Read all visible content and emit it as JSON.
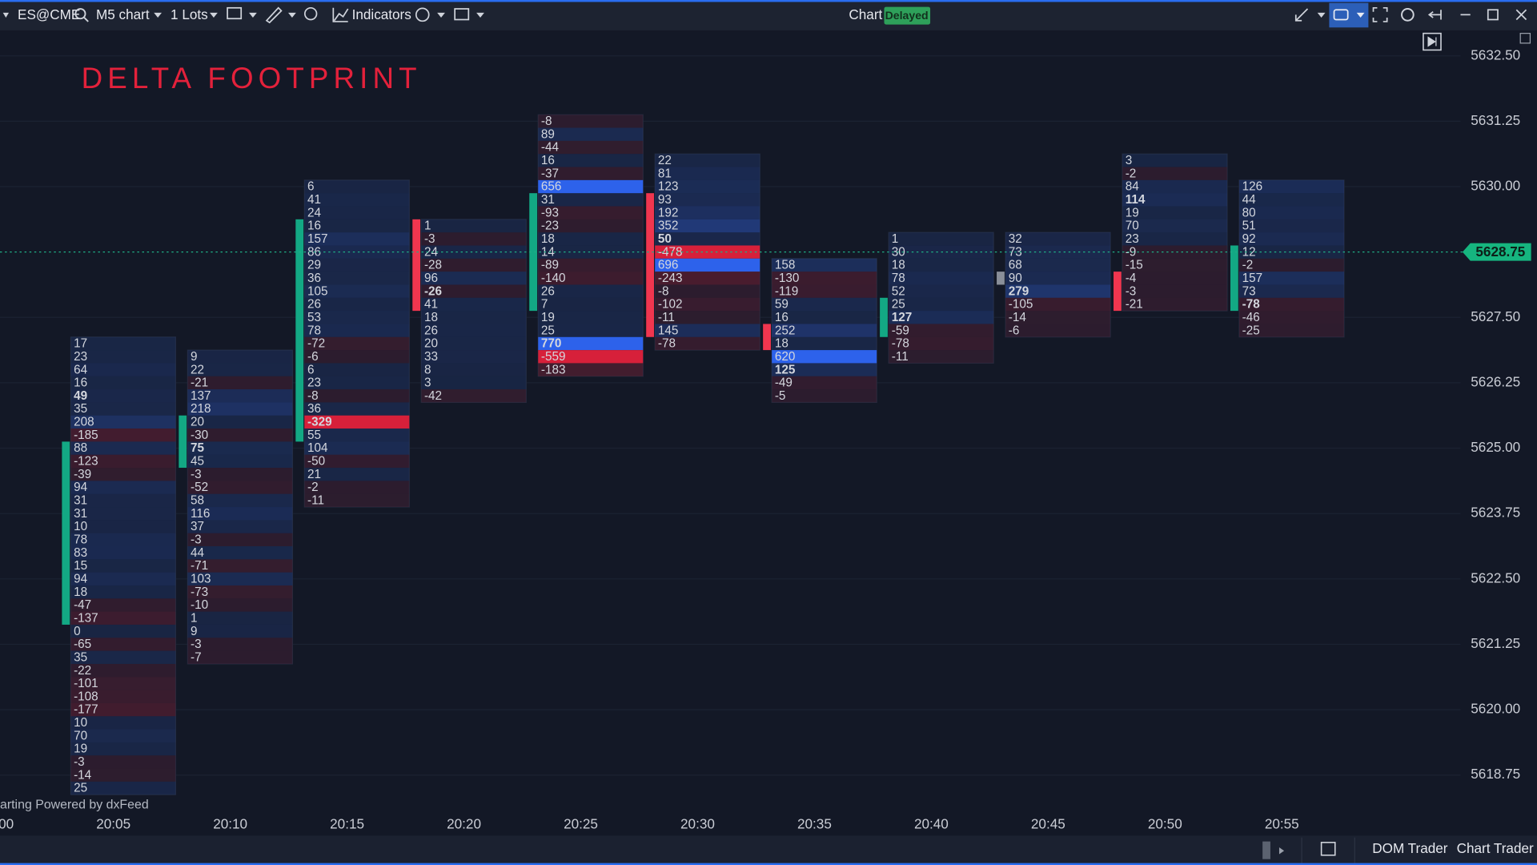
{
  "toolbar": {
    "symbol": "ES@CME",
    "timeframe": "M5 chart",
    "lots": "1 Lots",
    "indicators": "Indicators",
    "chart_label": "Chart",
    "status": "Delayed"
  },
  "bottom_bar": {
    "dom_trader": "DOM Trader",
    "chart_trader": "Chart Trader"
  },
  "watermark": "arting Powered by dxFeed",
  "chart_data": {
    "type": "footprint",
    "title": "DELTA FOOTPRINT",
    "tick_size": 0.25,
    "ylim": [
      5618.0,
      5633.0
    ],
    "yticks": [
      {
        "value": 5632.5,
        "label": "5632.50"
      },
      {
        "value": 5631.25,
        "label": "5631.25"
      },
      {
        "value": 5630,
        "label": "5630.00"
      },
      {
        "value": 5627.5,
        "label": "5627.50"
      },
      {
        "value": 5626.25,
        "label": "5626.25"
      },
      {
        "value": 5625,
        "label": "5625.00"
      },
      {
        "value": 5623.75,
        "label": "5623.75"
      },
      {
        "value": 5622.5,
        "label": "5622.50"
      },
      {
        "value": 5621.25,
        "label": "5621.25"
      },
      {
        "value": 5620,
        "label": "5620.00"
      },
      {
        "value": 5618.75,
        "label": "5618.75"
      }
    ],
    "current_price": {
      "value": 5628.75,
      "label": "5628.75"
    },
    "grid": true,
    "categories": [
      "00",
      "20:05",
      "20:10",
      "20:15",
      "20:20",
      "20:25",
      "20:30",
      "20:35",
      "20:40",
      "20:45",
      "20:50",
      "20:55"
    ],
    "columns": [
      {},
      {
        "high": 5627.0,
        "open": 5621.75,
        "close": 5625.0,
        "bold": 4,
        "values": [
          17,
          23,
          64,
          16,
          49,
          35,
          208,
          -185,
          88,
          -123,
          -39,
          94,
          31,
          31,
          10,
          78,
          83,
          15,
          94,
          18,
          -47,
          -137,
          0,
          -65,
          35,
          -22,
          -101,
          -108,
          -177,
          10,
          70,
          19,
          -3,
          -14,
          25
        ]
      },
      {
        "high": 5626.75,
        "open": 5624.75,
        "close": 5625.5,
        "bold": 7,
        "values": [
          9,
          22,
          -21,
          137,
          218,
          20,
          -30,
          75,
          45,
          -3,
          -52,
          58,
          116,
          37,
          -3,
          44,
          -71,
          103,
          -73,
          -10,
          1,
          9,
          -3,
          -7
        ]
      },
      {
        "high": 5630.0,
        "open": 5625.25,
        "close": 5629.25,
        "bold": 18,
        "values": [
          6,
          41,
          24,
          16,
          157,
          86,
          29,
          36,
          105,
          26,
          53,
          78,
          -72,
          -6,
          6,
          23,
          -8,
          36,
          -329,
          55,
          104,
          -50,
          21,
          -2,
          -11
        ]
      },
      {
        "high": 5629.25,
        "open": 5629.25,
        "close": 5627.75,
        "bold": 5,
        "values": [
          1,
          -3,
          24,
          -28,
          96,
          -26,
          41,
          18,
          26,
          20,
          33,
          8,
          3,
          -42
        ]
      },
      {
        "high": 5631.25,
        "open": 5627.75,
        "close": 5629.75,
        "bold": 17,
        "values": [
          -8,
          89,
          -44,
          16,
          -37,
          656,
          31,
          -93,
          -23,
          18,
          14,
          -89,
          -140,
          26,
          7,
          19,
          25,
          770,
          -559,
          -183
        ]
      },
      {
        "high": 5630.5,
        "open": 5629.75,
        "close": 5627.25,
        "bold": 6,
        "values": [
          22,
          81,
          123,
          93,
          192,
          352,
          50,
          -478,
          696,
          -243,
          -8,
          -102,
          -11,
          145,
          -78
        ]
      },
      {
        "high": 5628.5,
        "open": 5627.25,
        "close": 5627.0,
        "bold": 8,
        "values": [
          158,
          -130,
          -119,
          59,
          16,
          252,
          18,
          620,
          125,
          -49,
          -5
        ]
      },
      {
        "high": 5629.0,
        "open": 5627.25,
        "close": 5627.75,
        "bold": 6,
        "values": [
          1,
          30,
          18,
          78,
          52,
          25,
          127,
          -59,
          -78,
          -11
        ]
      },
      {
        "high": 5629.0,
        "open": 5628.25,
        "close": 5628.25,
        "bold": 4,
        "values": [
          32,
          73,
          68,
          90,
          279,
          -105,
          -14,
          -6
        ]
      },
      {
        "high": 5630.5,
        "open": 5628.25,
        "close": 5627.75,
        "bold": 3,
        "values": [
          3,
          -2,
          84,
          114,
          19,
          70,
          23,
          -9,
          -15,
          -4,
          -3,
          -21
        ]
      },
      {
        "high": 5630.0,
        "open": 5627.75,
        "close": 5628.75,
        "bold": 9,
        "values": [
          126,
          44,
          80,
          51,
          92,
          12,
          -2,
          157,
          73,
          -78,
          -46,
          -25
        ]
      }
    ]
  }
}
